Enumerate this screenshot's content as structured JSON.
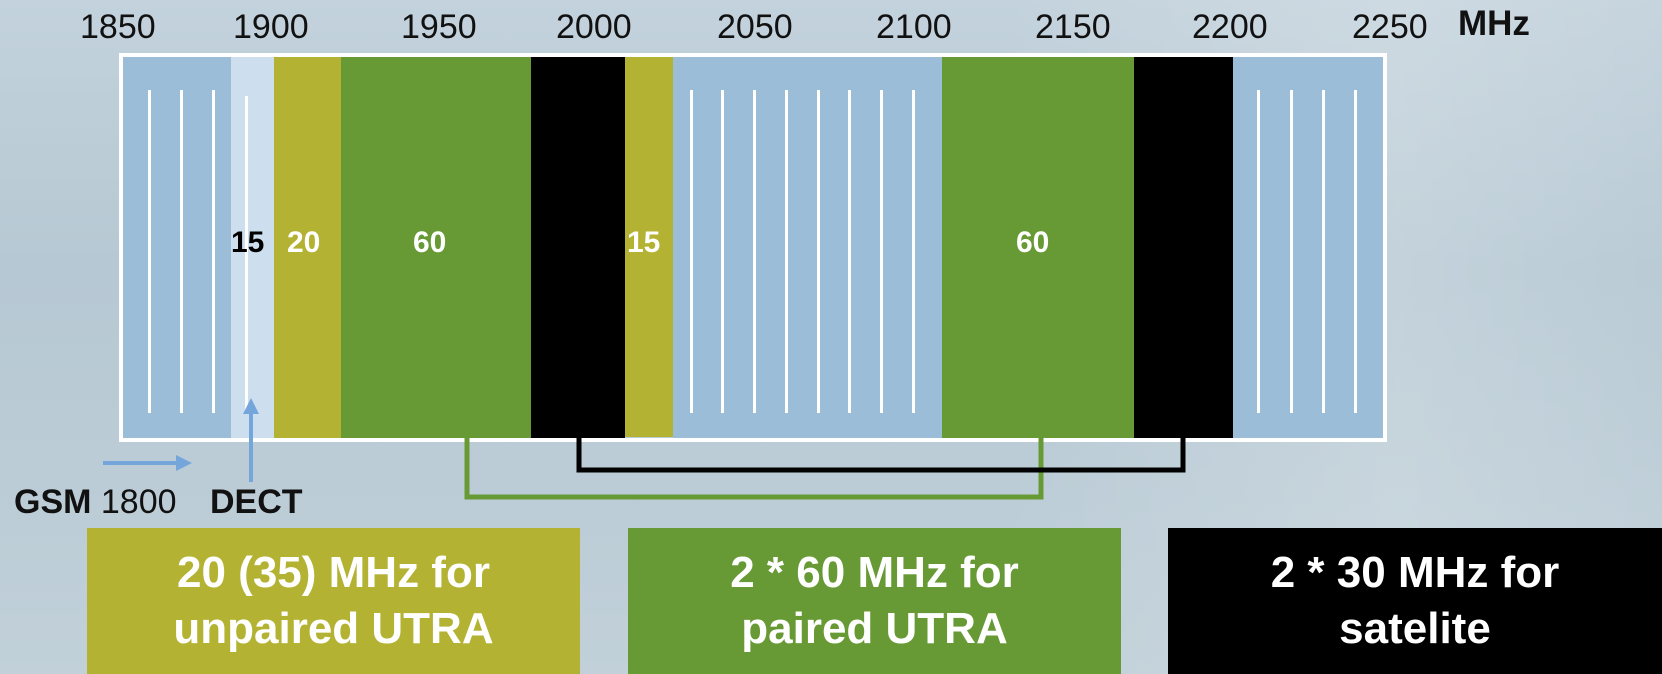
{
  "axis": {
    "ticks": [
      "1850",
      "1900",
      "1950",
      "2000",
      "2050",
      "2100",
      "2150",
      "2200",
      "2250"
    ],
    "unit": "MHz"
  },
  "bands": {
    "dect_width": "15",
    "unpaired_low_width": "20",
    "paired_low_width": "60",
    "unpaired_high_width": "15",
    "paired_high_width": "60"
  },
  "labels": {
    "gsm_bold": "GSM",
    "gsm_suffix": " 1800",
    "dect": "DECT"
  },
  "legend": [
    {
      "line1": "20 (35) MHz for",
      "line2": "unpaired UTRA"
    },
    {
      "line1": "2 * 60 MHz for",
      "line2": "paired UTRA"
    },
    {
      "line1": "2 * 30 MHz for",
      "line2": "satelite"
    }
  ],
  "colors": {
    "gsm_band": "#9bbdd8",
    "dect_band": "#cddfee",
    "unpaired": "#b3b232",
    "paired": "#679a35",
    "satellite": "#000000",
    "umts_extension": "#9bbdd8"
  }
}
